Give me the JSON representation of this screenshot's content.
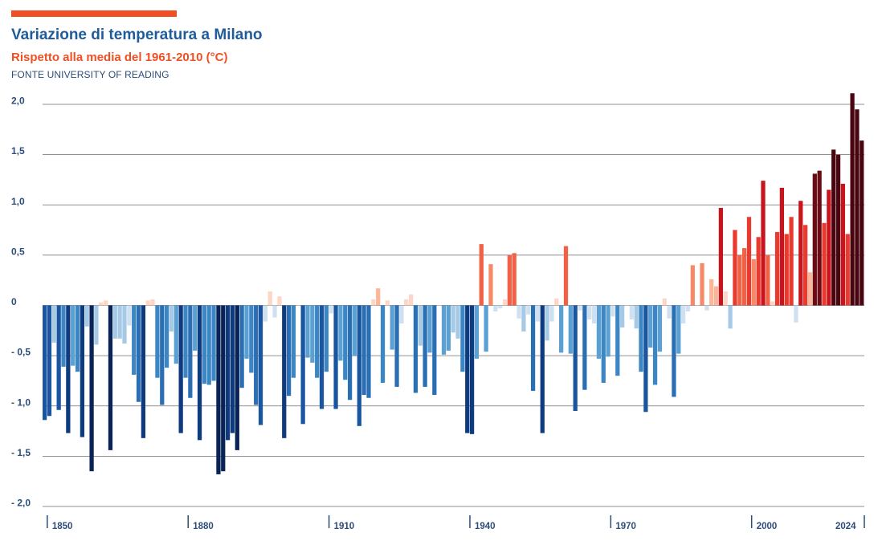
{
  "colors": {
    "accent": "#f04e23",
    "title": "#1f5c99",
    "subtitle": "#f04e23",
    "text": "#2c4d7a",
    "grid": "#6e6e6e"
  },
  "header": {
    "title": "Variazione di temperatura a Milano",
    "subtitle": "Rispetto alla media del 1961-2010 (°C)",
    "source": "FONTE  UNIVERSITY OF READING"
  },
  "chart_data": {
    "type": "bar",
    "title": "Variazione di temperatura a Milano",
    "subtitle": "Rispetto alla media del 1961-2010 (°C)",
    "xlabel": "",
    "ylabel": "",
    "ylim": [
      -2.0,
      2.0
    ],
    "yticks": [
      2.0,
      1.5,
      1.0,
      0.5,
      0,
      -0.5,
      -1.0,
      -1.5,
      -2.0
    ],
    "ytick_labels": [
      "2,0",
      "1,5",
      "1,0",
      "0,5",
      "0",
      "- 0,5",
      "- 1,0",
      "- 1,5",
      "- 2,0"
    ],
    "xticks": [
      1850,
      1880,
      1910,
      1940,
      1970,
      2000,
      2024
    ],
    "xtick_labels": [
      "1850",
      "1880",
      "1910",
      "1940",
      "1970",
      "2000",
      "2024"
    ],
    "grid": true,
    "color_scale": "warming stripes (blue = colder, red = warmer)",
    "x_start": 1849,
    "x_end": 2024,
    "values": [
      -1.14,
      -1.1,
      -0.37,
      -1.04,
      -0.61,
      -1.27,
      -0.6,
      -0.66,
      -1.31,
      -0.21,
      -1.65,
      -0.39,
      0.03,
      0.05,
      -1.44,
      -0.33,
      -0.33,
      -0.38,
      -0.2,
      -0.69,
      -0.96,
      -1.32,
      0.05,
      0.06,
      -0.72,
      -0.99,
      -0.62,
      -0.26,
      -0.58,
      -1.27,
      -0.72,
      -0.92,
      -0.45,
      -1.34,
      -0.78,
      -0.79,
      -0.75,
      -1.68,
      -1.65,
      -1.34,
      -1.27,
      -1.44,
      -0.82,
      -0.53,
      -0.67,
      -0.99,
      -1.19,
      -0.16,
      0.14,
      -0.12,
      0.09,
      -1.32,
      -0.9,
      -0.72,
      0.0,
      -1.18,
      -0.52,
      -0.57,
      -0.72,
      -1.03,
      -0.66,
      -0.08,
      -1.03,
      -0.55,
      -0.74,
      -0.94,
      -0.5,
      -1.2,
      -0.89,
      -0.92,
      0.06,
      0.17,
      -0.77,
      0.05,
      -0.44,
      -0.81,
      -0.18,
      0.06,
      0.11,
      -0.87,
      -0.4,
      -0.81,
      -0.47,
      -0.89,
      0.0,
      -0.49,
      -0.45,
      -0.27,
      -0.33,
      -0.66,
      -1.27,
      -1.28,
      -0.53,
      0.61,
      -0.46,
      0.41,
      -0.06,
      -0.03,
      0.06,
      0.5,
      0.52,
      -0.13,
      -0.26,
      -0.09,
      -0.85,
      -0.16,
      -1.27,
      -0.35,
      -0.16,
      0.07,
      -0.47,
      0.59,
      -0.48,
      -1.05,
      -0.05,
      -0.84,
      -0.14,
      -0.18,
      -0.53,
      -0.77,
      -0.51,
      -0.11,
      -0.7,
      -0.22,
      0.0,
      -0.14,
      -0.23,
      -0.66,
      -1.06,
      -0.42,
      -0.79,
      -0.46,
      0.07,
      -0.13,
      -0.91,
      -0.48,
      -0.18,
      -0.06,
      0.4,
      0.0,
      0.42,
      -0.05,
      0.26,
      0.19,
      0.97,
      0.14,
      -0.23,
      0.75,
      0.5,
      0.57,
      0.88,
      0.46,
      0.68,
      1.24,
      0.5,
      0.04,
      0.73,
      1.17,
      0.71,
      0.88,
      -0.17,
      1.04,
      0.8,
      0.33,
      1.31,
      1.34,
      0.82,
      1.15,
      1.55,
      1.5,
      1.21,
      0.71,
      2.11,
      1.95,
      1.64
    ]
  }
}
